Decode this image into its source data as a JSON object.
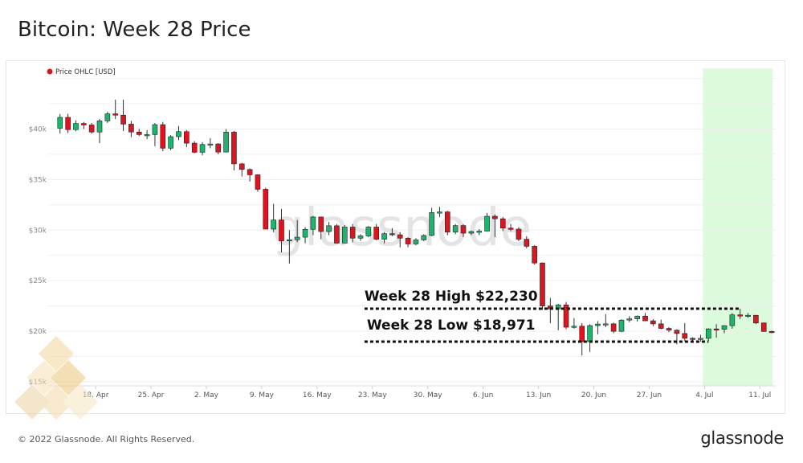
{
  "header": {
    "title": "Bitcoin: Week 28 Price"
  },
  "footer": {
    "copyright": "© 2022 Glassnode. All Rights Reserved.",
    "brand": "glassnode"
  },
  "watermark": "glassnode",
  "colors": {
    "up": "#1bb56b",
    "down": "#e0141e",
    "highlight": "#dcfadc",
    "legend_dot": "#e0141e"
  },
  "chart_data": {
    "type": "candlestick",
    "title": "Bitcoin: Week 28 Price",
    "legend": {
      "label": "Price OHLC [USD]",
      "position": "top-left"
    },
    "ylim": [
      14600,
      46000
    ],
    "yticks": [
      {
        "v": 15000,
        "label": "$15k"
      },
      {
        "v": 20000,
        "label": "$20k"
      },
      {
        "v": 25000,
        "label": "$25k"
      },
      {
        "v": 30000,
        "label": "$30k"
      },
      {
        "v": 35000,
        "label": "$35k"
      },
      {
        "v": 40000,
        "label": "$40k"
      }
    ],
    "xlim": [
      "2022-04-12",
      "2022-07-13"
    ],
    "xticks": [
      {
        "date": "2022-04-18",
        "label": "18. Apr"
      },
      {
        "date": "2022-04-25",
        "label": "25. Apr"
      },
      {
        "date": "2022-05-02",
        "label": "2. May"
      },
      {
        "date": "2022-05-09",
        "label": "9. May"
      },
      {
        "date": "2022-05-16",
        "label": "16. May"
      },
      {
        "date": "2022-05-23",
        "label": "23. May"
      },
      {
        "date": "2022-05-30",
        "label": "30. May"
      },
      {
        "date": "2022-06-06",
        "label": "6. Jun"
      },
      {
        "date": "2022-06-13",
        "label": "13. Jun"
      },
      {
        "date": "2022-06-20",
        "label": "20. Jun"
      },
      {
        "date": "2022-06-27",
        "label": "27. Jun"
      },
      {
        "date": "2022-07-04",
        "label": "4. Jul"
      },
      {
        "date": "2022-07-11",
        "label": "11. Jul"
      }
    ],
    "grid": true,
    "highlight": {
      "from": "2022-07-04",
      "to": "2022-07-12"
    },
    "annotations": [
      {
        "label": "Week 28 High $22,230",
        "value": 22230,
        "from": "2022-05-22",
        "to": "2022-07-08"
      },
      {
        "label": "Week 28 Low $18,971",
        "value": 18971,
        "from": "2022-05-22",
        "to": "2022-07-04"
      }
    ],
    "start_date": "2022-04-13",
    "ohlc": [
      [
        40080,
        41500,
        39550,
        41150
      ],
      [
        41150,
        41500,
        39600,
        39940
      ],
      [
        39940,
        40850,
        39780,
        40550
      ],
      [
        40550,
        40700,
        40000,
        40400
      ],
      [
        40400,
        40600,
        39550,
        39700
      ],
      [
        39700,
        41000,
        38600,
        40800
      ],
      [
        40800,
        41700,
        40600,
        41500
      ],
      [
        41500,
        42900,
        41000,
        41370
      ],
      [
        41370,
        42900,
        39800,
        40480
      ],
      [
        40480,
        40800,
        39200,
        39700
      ],
      [
        39700,
        40000,
        39300,
        39450
      ],
      [
        39450,
        39900,
        39000,
        39450
      ],
      [
        39450,
        40600,
        38300,
        40430
      ],
      [
        40430,
        40700,
        37800,
        38100
      ],
      [
        38100,
        39400,
        37900,
        39240
      ],
      [
        39240,
        40300,
        38900,
        39740
      ],
      [
        39740,
        39900,
        38200,
        38600
      ],
      [
        38600,
        38800,
        37600,
        37700
      ],
      [
        37700,
        38700,
        37400,
        38470
      ],
      [
        38470,
        39100,
        38100,
        38520
      ],
      [
        38520,
        38600,
        37500,
        37720
      ],
      [
        37720,
        40000,
        37700,
        39690
      ],
      [
        39690,
        39800,
        35900,
        36550
      ],
      [
        36550,
        36650,
        35300,
        36000
      ],
      [
        36000,
        36100,
        34800,
        35470
      ],
      [
        35470,
        35500,
        33800,
        34040
      ],
      [
        34040,
        34200,
        30100,
        30100
      ],
      [
        30100,
        32600,
        29800,
        31000
      ],
      [
        31000,
        32100,
        27800,
        28940
      ],
      [
        28940,
        30000,
        26700,
        29050
      ],
      [
        29050,
        31000,
        28800,
        29300
      ],
      [
        29300,
        30300,
        28700,
        30080
      ],
      [
        30080,
        31400,
        29500,
        31300
      ],
      [
        31300,
        31300,
        29100,
        29860
      ],
      [
        29860,
        30800,
        29500,
        30430
      ],
      [
        30430,
        30600,
        28700,
        28710
      ],
      [
        28710,
        30500,
        28700,
        30300
      ],
      [
        30300,
        30600,
        28800,
        29200
      ],
      [
        29200,
        29600,
        28950,
        29430
      ],
      [
        29430,
        30400,
        29300,
        30300
      ],
      [
        30300,
        30600,
        29000,
        29100
      ],
      [
        29100,
        29800,
        28700,
        29650
      ],
      [
        29650,
        30200,
        29400,
        29540
      ],
      [
        29540,
        29800,
        28300,
        29200
      ],
      [
        29200,
        29300,
        28300,
        28630
      ],
      [
        28630,
        29200,
        28500,
        29030
      ],
      [
        29030,
        29600,
        28900,
        29470
      ],
      [
        29470,
        32200,
        29400,
        31730
      ],
      [
        31730,
        32300,
        31300,
        31800
      ],
      [
        31800,
        31900,
        29500,
        29800
      ],
      [
        29800,
        30600,
        29600,
        30450
      ],
      [
        30450,
        30600,
        29300,
        29700
      ],
      [
        29700,
        29950,
        29500,
        29860
      ],
      [
        29860,
        30100,
        29500,
        29900
      ],
      [
        29900,
        31700,
        29900,
        31370
      ],
      [
        31370,
        31550,
        29300,
        31120
      ],
      [
        31120,
        31300,
        29900,
        30200
      ],
      [
        30200,
        30600,
        29900,
        30100
      ],
      [
        30100,
        30300,
        28900,
        29100
      ],
      [
        29100,
        29400,
        28200,
        28400
      ],
      [
        28400,
        28500,
        26600,
        26750
      ],
      [
        26750,
        26800,
        22100,
        22500
      ],
      [
        22500,
        23300,
        20800,
        22200
      ],
      [
        22200,
        22700,
        20100,
        22600
      ],
      [
        22600,
        22900,
        20200,
        20400
      ],
      [
        20400,
        21300,
        20250,
        20500
      ],
      [
        20500,
        20800,
        17600,
        18970
      ],
      [
        18970,
        20700,
        17950,
        20560
      ],
      [
        20560,
        21000,
        19700,
        20710
      ],
      [
        20710,
        21700,
        20400,
        20730
      ],
      [
        20730,
        20850,
        19800,
        19990
      ],
      [
        19990,
        21200,
        19900,
        21100
      ],
      [
        21100,
        21500,
        20900,
        21230
      ],
      [
        21230,
        21550,
        20950,
        21500
      ],
      [
        21500,
        21800,
        21000,
        21030
      ],
      [
        21030,
        21200,
        20500,
        20730
      ],
      [
        20730,
        21150,
        20200,
        20280
      ],
      [
        20280,
        20400,
        19900,
        20100
      ],
      [
        20100,
        20200,
        18700,
        19780
      ],
      [
        19780,
        20800,
        19000,
        19300
      ],
      [
        19300,
        19400,
        19000,
        19240
      ],
      [
        19240,
        19650,
        18970,
        19300
      ],
      [
        19300,
        20300,
        19050,
        20230
      ],
      [
        20230,
        20700,
        19350,
        20190
      ],
      [
        20190,
        20600,
        19800,
        20550
      ],
      [
        20550,
        21800,
        20250,
        21620
      ],
      [
        21620,
        22230,
        21200,
        21580
      ],
      [
        21580,
        21800,
        21320,
        21580
      ],
      [
        21580,
        21600,
        20700,
        20820
      ],
      [
        20820,
        20860,
        19950,
        19980
      ],
      [
        19980,
        20050,
        19800,
        19900
      ]
    ]
  }
}
